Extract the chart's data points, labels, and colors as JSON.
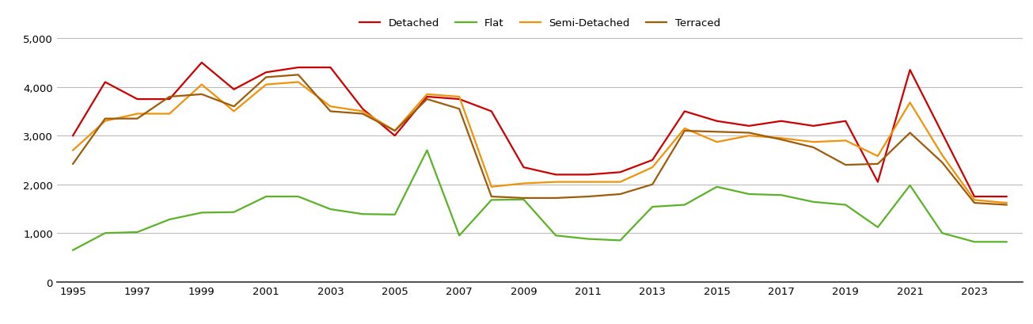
{
  "years": [
    1995,
    1996,
    1997,
    1998,
    1999,
    2000,
    2001,
    2002,
    2003,
    2004,
    2005,
    2006,
    2007,
    2008,
    2009,
    2010,
    2011,
    2012,
    2013,
    2014,
    2015,
    2016,
    2017,
    2018,
    2019,
    2020,
    2021,
    2022,
    2023,
    2024
  ],
  "detached": [
    3000,
    4100,
    3750,
    3750,
    4500,
    3950,
    4300,
    4400,
    4400,
    3550,
    3000,
    3800,
    3750,
    3500,
    2350,
    2200,
    2200,
    2250,
    2500,
    3500,
    3300,
    3200,
    3300,
    3200,
    3300,
    2050,
    4350,
    3050,
    1750,
    1750
  ],
  "flat": [
    650,
    1000,
    1020,
    1280,
    1420,
    1430,
    1750,
    1750,
    1490,
    1390,
    1380,
    2700,
    950,
    1680,
    1690,
    950,
    880,
    850,
    1540,
    1580,
    1950,
    1800,
    1780,
    1640,
    1580,
    1120,
    1980,
    1000,
    820,
    820
  ],
  "semi_detached": [
    2700,
    3300,
    3450,
    3450,
    4050,
    3500,
    4050,
    4100,
    3600,
    3500,
    3100,
    3850,
    3800,
    1950,
    2020,
    2050,
    2050,
    2050,
    2350,
    3150,
    2870,
    3000,
    2950,
    2870,
    2900,
    2580,
    3680,
    2600,
    1680,
    1620
  ],
  "terraced": [
    2420,
    3350,
    3350,
    3800,
    3850,
    3600,
    4200,
    4250,
    3500,
    3450,
    3100,
    3750,
    3550,
    1750,
    1720,
    1720,
    1750,
    1800,
    2000,
    3100,
    3080,
    3060,
    2920,
    2760,
    2400,
    2420,
    3060,
    2450,
    1620,
    1580
  ],
  "series_colors": {
    "Detached": "#cc0000",
    "Flat": "#5ab227",
    "Semi-Detached": "#f0920a",
    "Terraced": "#9e5b0a"
  },
  "legend_labels": [
    "Detached",
    "Flat",
    "Semi-Detached",
    "Terraced"
  ],
  "ylim": [
    0,
    5000
  ],
  "yticks": [
    0,
    1000,
    2000,
    3000,
    4000,
    5000
  ],
  "xtick_years": [
    1995,
    1997,
    1999,
    2001,
    2003,
    2005,
    2007,
    2009,
    2011,
    2013,
    2015,
    2017,
    2019,
    2021,
    2023
  ],
  "background_color": "#ffffff",
  "grid_color": "#bbbbbb",
  "linewidth": 1.6,
  "figsize": [
    13.05,
    4.1
  ],
  "dpi": 100
}
